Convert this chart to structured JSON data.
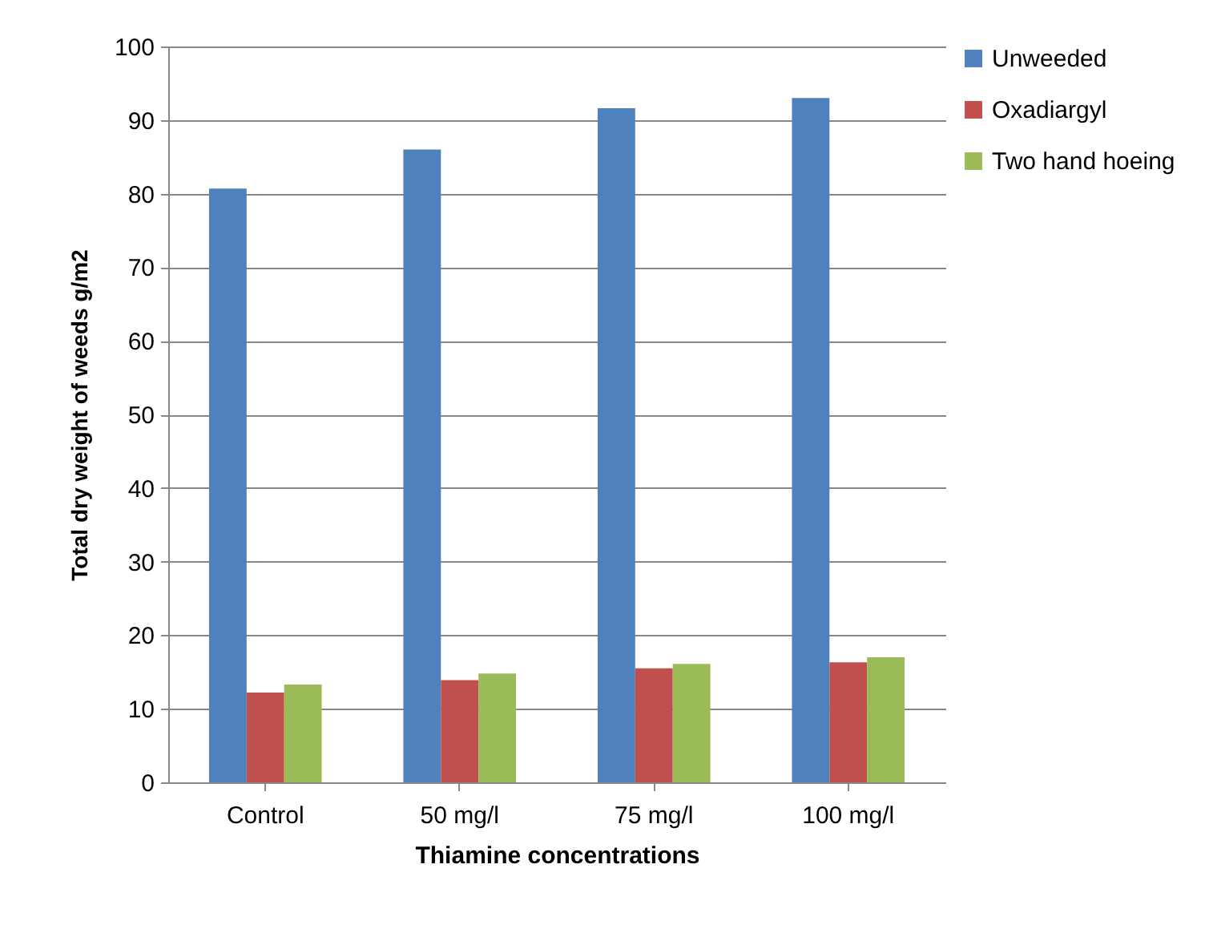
{
  "chart_data": {
    "type": "bar",
    "xlabel": "Thiamine concentrations",
    "ylabel": "Total dry weight of weeds g/m2",
    "categories": [
      "Control",
      "50 mg/l",
      "75 mg/l",
      "100 mg/l"
    ],
    "series": [
      {
        "name": "Unweeded",
        "color": "#4f81bd",
        "values": [
          80.7,
          86,
          91.6,
          93
        ]
      },
      {
        "name": "Oxadiargyl",
        "color": "#c0504d",
        "values": [
          12.2,
          13.9,
          15.5,
          16.3
        ]
      },
      {
        "name": "Two hand hoeing",
        "color": "#9bbb59",
        "values": [
          13.3,
          14.8,
          16.1,
          17
        ]
      }
    ],
    "ylim": [
      0,
      100
    ],
    "yticks": [
      0,
      10,
      20,
      30,
      40,
      50,
      60,
      70,
      80,
      90,
      100
    ],
    "grid": "y",
    "legend": "right"
  }
}
